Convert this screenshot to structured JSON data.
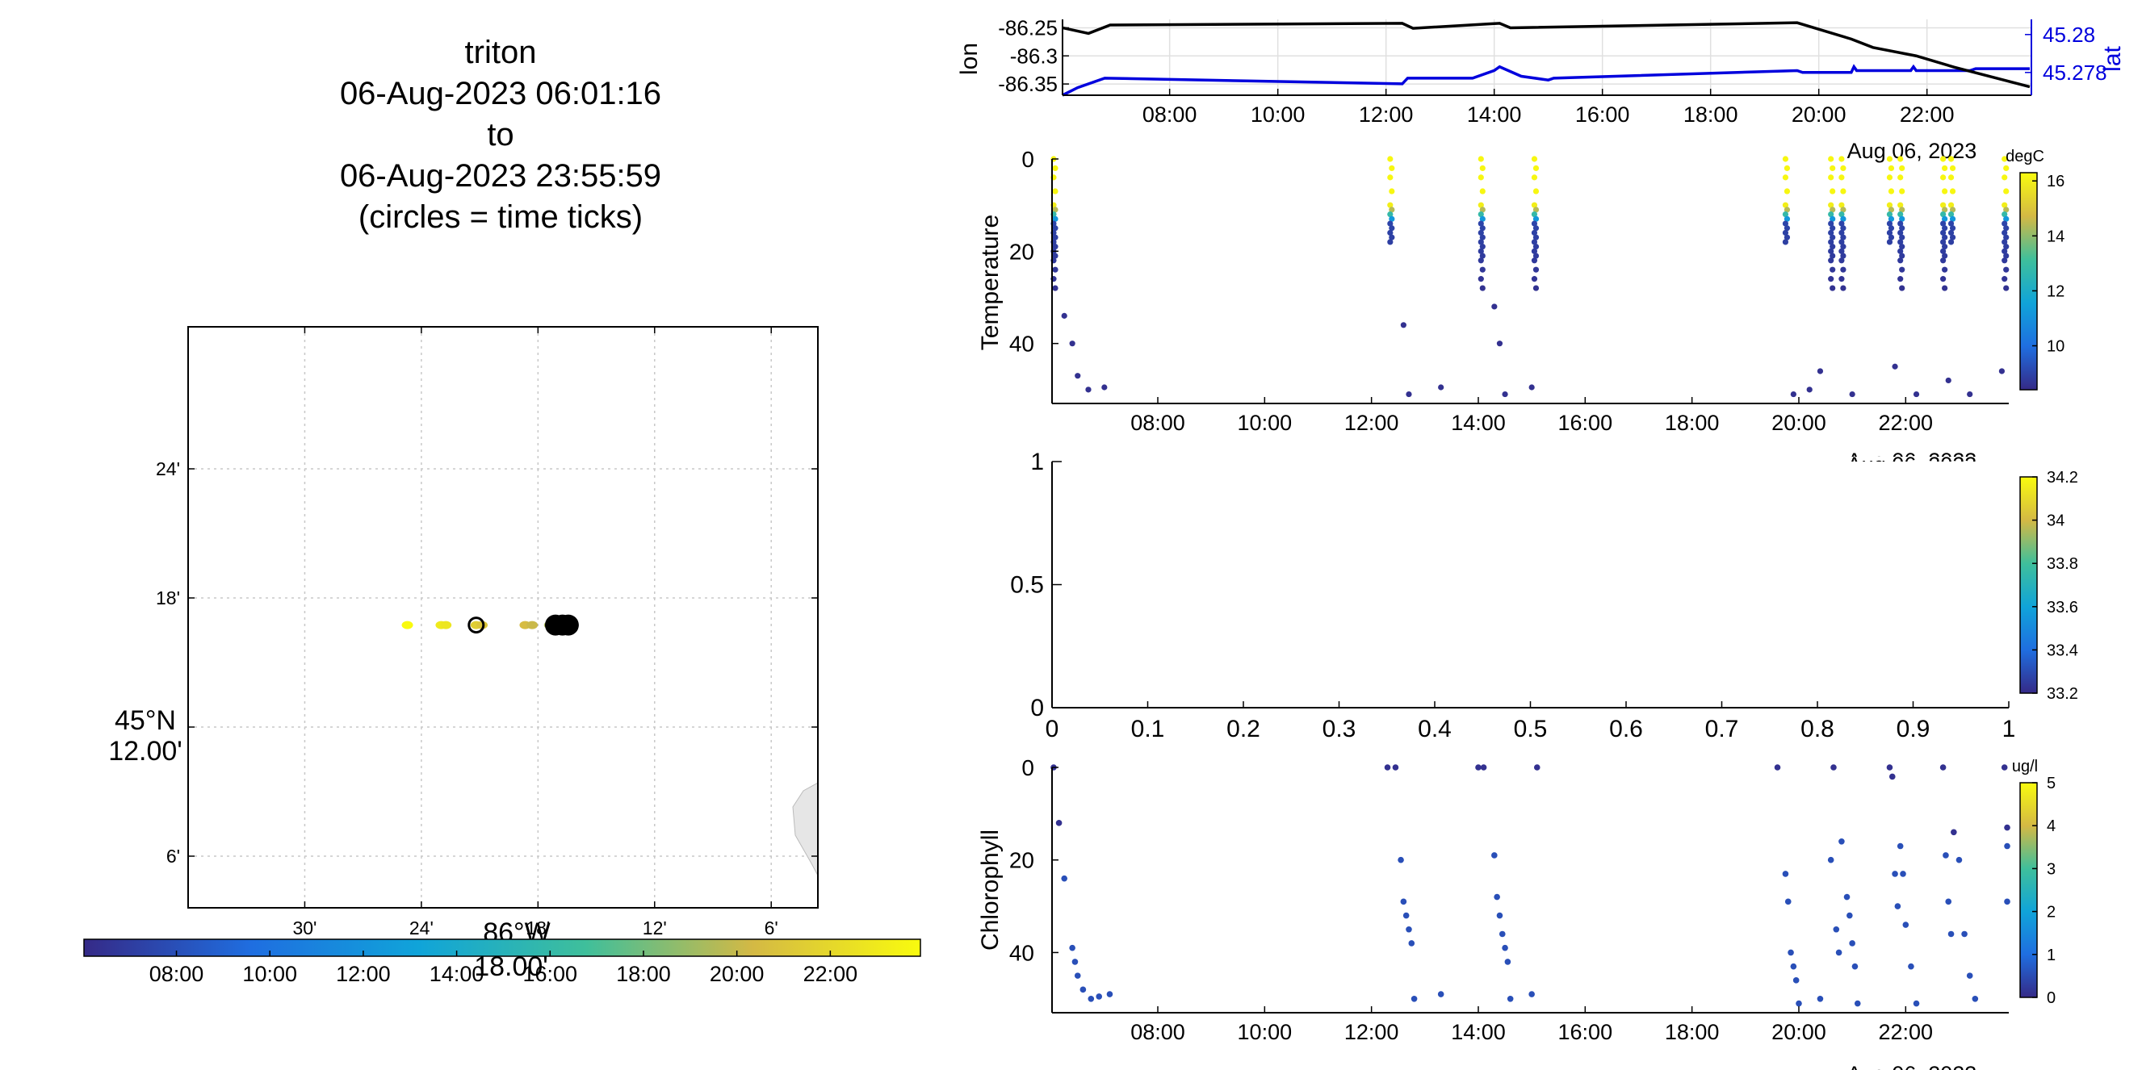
{
  "title": {
    "line1": "triton",
    "line2": "06-Aug-2023 06:01:16",
    "line3": "to",
    "line4": "06-Aug-2023 23:55:59",
    "line5": "(circles = time ticks)"
  },
  "date_label": "Aug 06, 2023",
  "time_ticks": [
    "08:00",
    "10:00",
    "12:00",
    "14:00",
    "16:00",
    "18:00",
    "20:00",
    "22:00"
  ],
  "colors": {
    "axis": "#000000",
    "lat_line": "#0000dd",
    "lon_line": "#000000",
    "grid": "#d9d9d9",
    "land": "#e6e6e6"
  },
  "chart_data": [
    {
      "id": "map",
      "type": "scatter",
      "title": "",
      "xlabel": "86°W 18.00'",
      "ylabel": "45°N 12.00'",
      "x_tick_labels": [
        "30'",
        "24'",
        "18'",
        "12'",
        "6'"
      ],
      "y_tick_labels": [
        "24'",
        "18'",
        "12'",
        "6'"
      ],
      "xlim": [
        -86.6,
        -86.06
      ],
      "ylim": [
        45.06,
        45.51
      ],
      "track_lon": [
        -86.412,
        -86.383,
        -86.379,
        -86.353,
        -86.348,
        -86.311,
        -86.305,
        -86.29,
        -86.282,
        -86.276,
        -86.272,
        -86.27
      ],
      "track_lat": [
        45.279,
        45.279,
        45.279,
        45.279,
        45.279,
        45.279,
        45.279,
        45.279,
        45.279,
        45.279,
        45.279,
        45.279
      ],
      "track_hour": [
        23.9,
        23.0,
        22.8,
        21.5,
        21.0,
        20.5,
        20.1,
        19.4,
        15.0,
        14.0,
        12.3,
        6.1
      ],
      "time_tick_circle": {
        "lon": -86.353,
        "lat": 45.279
      },
      "colorbar": {
        "tick_labels": [
          "08:00",
          "10:00",
          "12:00",
          "14:00",
          "16:00",
          "18:00",
          "20:00",
          "22:00"
        ],
        "range_hours": [
          6.02,
          23.93
        ]
      }
    },
    {
      "id": "lonlat",
      "type": "line",
      "ylabel": "lon",
      "y2label": "lat",
      "y_tick_labels": [
        "-86.25",
        "-86.3",
        "-86.35"
      ],
      "y2_tick_labels": [
        "45.28",
        "45.278"
      ],
      "ylim": [
        -86.37,
        -86.235
      ],
      "y2lim": [
        45.2768,
        45.2808
      ],
      "xlim_hours": [
        6.02,
        23.93
      ],
      "series": [
        {
          "name": "lon",
          "x_hours": [
            6.02,
            6.5,
            6.9,
            12.3,
            12.5,
            13.9,
            14.1,
            14.3,
            19.6,
            20.6,
            21.0,
            21.8,
            22.5,
            23.9
          ],
          "values": [
            -86.25,
            -86.26,
            -86.245,
            -86.242,
            -86.251,
            -86.243,
            -86.242,
            -86.25,
            -86.241,
            -86.27,
            -86.285,
            -86.3,
            -86.32,
            -86.355
          ]
        },
        {
          "name": "lat",
          "x_hours": [
            6.02,
            6.3,
            6.8,
            12.3,
            12.4,
            13.6,
            14.0,
            14.1,
            14.5,
            15.0,
            15.1,
            19.6,
            19.7,
            20.6,
            20.65,
            20.7,
            21.7,
            21.75,
            21.8,
            22.8,
            22.9,
            23.9
          ],
          "values": [
            45.2768,
            45.2772,
            45.2777,
            45.2774,
            45.2777,
            45.2777,
            45.2781,
            45.2783,
            45.2778,
            45.2776,
            45.2777,
            45.2781,
            45.278,
            45.278,
            45.2783,
            45.2781,
            45.2781,
            45.2783,
            45.2781,
            45.2781,
            45.2782,
            45.2782
          ]
        }
      ]
    },
    {
      "id": "temperature",
      "type": "scatter",
      "ylabel": "Temperature",
      "colorbar_label": "degC",
      "colorbar_ticks": [
        "16",
        "14",
        "12",
        "10"
      ],
      "clim": [
        8.4,
        16.3
      ],
      "ylim": [
        0,
        53
      ],
      "y_tick_labels": [
        "0",
        "20",
        "40"
      ],
      "xlim_hours": [
        6.02,
        23.93
      ],
      "profiles_hours": [
        6.05,
        12.35,
        14.05,
        15.05,
        19.75,
        20.6,
        20.8,
        21.7,
        21.9,
        22.7,
        22.85,
        23.85
      ],
      "extra_points": [
        [
          6.25,
          34
        ],
        [
          6.4,
          40
        ],
        [
          6.5,
          47
        ],
        [
          6.7,
          50
        ],
        [
          7.0,
          49.5
        ],
        [
          12.6,
          36
        ],
        [
          12.7,
          51
        ],
        [
          13.3,
          49.5
        ],
        [
          14.3,
          32
        ],
        [
          14.4,
          40
        ],
        [
          14.5,
          51
        ],
        [
          15.0,
          49.5
        ],
        [
          19.9,
          51
        ],
        [
          20.2,
          50
        ],
        [
          20.4,
          46
        ],
        [
          21.0,
          51
        ],
        [
          21.8,
          45
        ],
        [
          22.2,
          51
        ],
        [
          22.8,
          48
        ],
        [
          23.2,
          51
        ],
        [
          23.8,
          46
        ]
      ]
    },
    {
      "id": "empty",
      "type": "scatter",
      "x_tick_labels": [
        "0",
        "0.1",
        "0.2",
        "0.3",
        "0.4",
        "0.5",
        "0.6",
        "0.7",
        "0.8",
        "0.9",
        "1"
      ],
      "y_tick_labels": [
        "1",
        "0.5",
        "0"
      ],
      "xlim": [
        0,
        1
      ],
      "ylim": [
        0,
        1
      ],
      "colorbar_ticks": [
        "34.2",
        "34",
        "33.8",
        "33.6",
        "33.4",
        "33.2"
      ]
    },
    {
      "id": "chlorophyll",
      "type": "scatter",
      "ylabel": "Chlorophyll",
      "colorbar_label": "ug/l",
      "colorbar_ticks": [
        "5",
        "4",
        "3",
        "2",
        "1",
        "0"
      ],
      "clim": [
        0,
        5
      ],
      "ylim": [
        0,
        53
      ],
      "y_tick_labels": [
        "0",
        "20",
        "40"
      ],
      "xlim_hours": [
        6.02,
        23.93
      ],
      "points": [
        [
          6.05,
          0
        ],
        [
          6.15,
          12
        ],
        [
          6.25,
          24
        ],
        [
          6.4,
          39
        ],
        [
          6.45,
          42
        ],
        [
          6.5,
          45
        ],
        [
          6.6,
          48
        ],
        [
          6.75,
          50
        ],
        [
          6.9,
          49.5
        ],
        [
          7.1,
          49
        ],
        [
          12.3,
          0
        ],
        [
          12.45,
          0
        ],
        [
          12.55,
          20
        ],
        [
          12.6,
          29
        ],
        [
          12.65,
          32
        ],
        [
          12.7,
          35
        ],
        [
          12.75,
          38
        ],
        [
          12.8,
          50
        ],
        [
          13.3,
          49
        ],
        [
          14.0,
          0
        ],
        [
          14.1,
          0
        ],
        [
          14.3,
          19
        ],
        [
          14.35,
          28
        ],
        [
          14.4,
          32
        ],
        [
          14.45,
          36
        ],
        [
          14.5,
          39
        ],
        [
          14.55,
          42
        ],
        [
          14.6,
          50
        ],
        [
          15.0,
          49
        ],
        [
          15.1,
          0
        ],
        [
          19.6,
          0
        ],
        [
          19.75,
          23
        ],
        [
          19.8,
          29
        ],
        [
          19.85,
          40
        ],
        [
          19.9,
          43
        ],
        [
          19.95,
          46
        ],
        [
          20.0,
          51
        ],
        [
          20.4,
          50
        ],
        [
          20.6,
          20
        ],
        [
          20.65,
          0
        ],
        [
          20.7,
          35
        ],
        [
          20.75,
          40
        ],
        [
          20.8,
          16
        ],
        [
          20.9,
          28
        ],
        [
          20.95,
          32
        ],
        [
          21.0,
          38
        ],
        [
          21.05,
          43
        ],
        [
          21.1,
          51
        ],
        [
          21.7,
          0
        ],
        [
          21.75,
          2
        ],
        [
          21.8,
          23
        ],
        [
          21.85,
          30
        ],
        [
          21.9,
          17
        ],
        [
          21.95,
          23
        ],
        [
          22.0,
          34
        ],
        [
          22.1,
          43
        ],
        [
          22.2,
          51
        ],
        [
          22.7,
          0
        ],
        [
          22.75,
          19
        ],
        [
          22.8,
          29
        ],
        [
          22.85,
          36
        ],
        [
          22.9,
          14
        ],
        [
          23.0,
          20
        ],
        [
          23.1,
          36
        ],
        [
          23.2,
          45
        ],
        [
          23.3,
          50
        ],
        [
          23.85,
          0
        ],
        [
          23.9,
          13
        ],
        [
          23.9,
          17
        ],
        [
          23.9,
          29
        ]
      ]
    }
  ]
}
